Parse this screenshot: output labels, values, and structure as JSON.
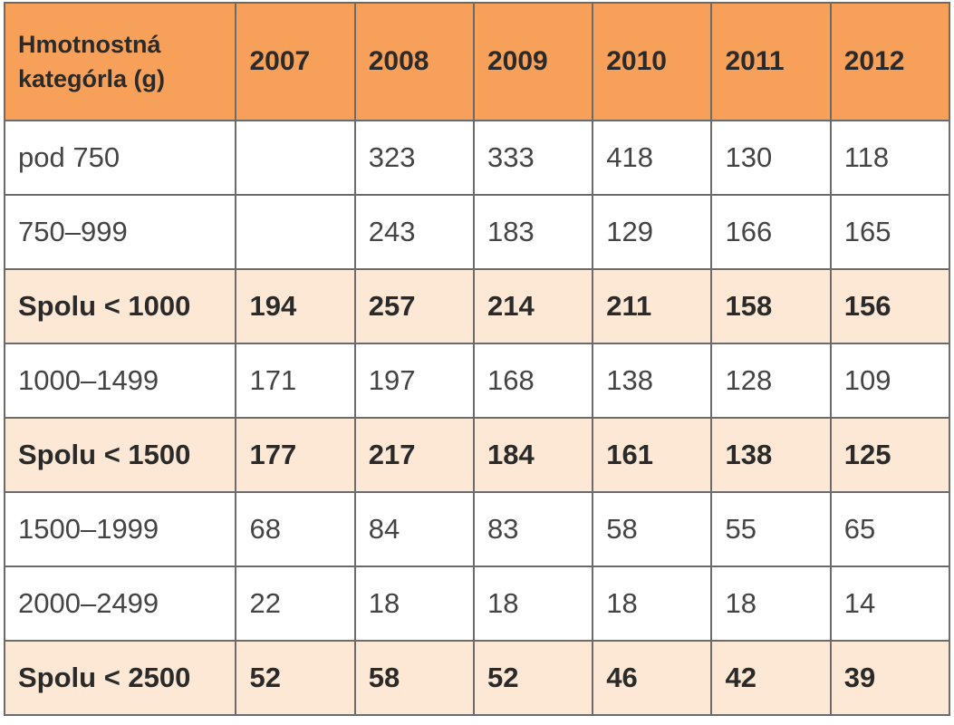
{
  "table": {
    "header": {
      "label_line1": "Hmotnostná",
      "label_line2": "kategórla (g)",
      "years": [
        "2007",
        "2008",
        "2009",
        "2010",
        "2011",
        "2012"
      ]
    },
    "rows": [
      {
        "label": "pod 750",
        "total": false,
        "values": [
          "",
          "323",
          "333",
          "418",
          "130",
          "118"
        ]
      },
      {
        "label": "750–999",
        "total": false,
        "values": [
          "",
          "243",
          "183",
          "129",
          "166",
          "165"
        ]
      },
      {
        "label": "Spolu < 1000",
        "total": true,
        "values": [
          "194",
          "257",
          "214",
          "211",
          "158",
          "156"
        ]
      },
      {
        "label": "1000–1499",
        "total": false,
        "values": [
          "171",
          "197",
          "168",
          "138",
          "128",
          "109"
        ]
      },
      {
        "label": "Spolu < 1500",
        "total": true,
        "values": [
          "177",
          "217",
          "184",
          "161",
          "138",
          "125"
        ]
      },
      {
        "label": "1500–1999",
        "total": false,
        "values": [
          "68",
          "84",
          "83",
          "58",
          "55",
          "65"
        ]
      },
      {
        "label": "2000–2499",
        "total": false,
        "values": [
          "22",
          "18",
          "18",
          "18",
          "18",
          "14"
        ]
      },
      {
        "label": "Spolu < 2500",
        "total": true,
        "values": [
          "52",
          "58",
          "52",
          "46",
          "42",
          "39"
        ]
      }
    ]
  },
  "colors": {
    "header_bg": "#f6a05a",
    "total_row_bg": "#fde8d5",
    "border": "#6b6b6b"
  }
}
